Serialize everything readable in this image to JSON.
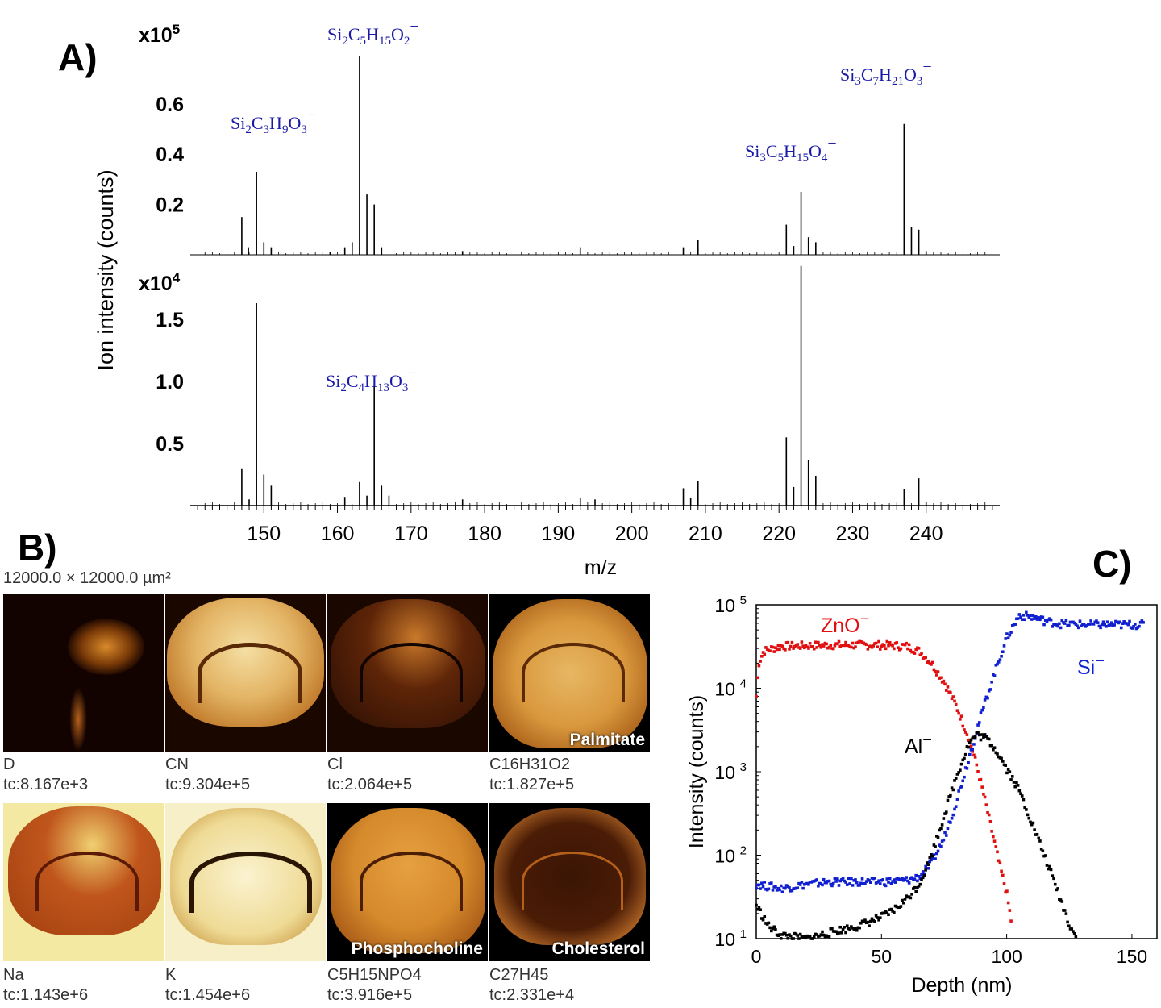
{
  "panel_a": {
    "label": "A)",
    "y_title": "Ion intensity (counts)",
    "x_title": "m/z",
    "x_ticks": [
      "150",
      "160",
      "170",
      "180",
      "190",
      "200",
      "210",
      "220",
      "230",
      "240"
    ],
    "top": {
      "multiplier": "x10",
      "multiplier_exp": "5",
      "y_ticks": [
        "0.2",
        "0.4",
        "0.6"
      ]
    },
    "bottom": {
      "multiplier": "x10",
      "multiplier_exp": "4",
      "y_ticks": [
        "0.5",
        "1.0",
        "1.5"
      ]
    },
    "ion_labels": [
      {
        "text": "Si2C3H9O3−"
      },
      {
        "text": "Si2C5H15O2−"
      },
      {
        "text": "Si3C5H15O4−"
      },
      {
        "text": "Si3C7H21O3−"
      },
      {
        "text": "Si2C4H13O3−"
      }
    ]
  },
  "chart_data": [
    {
      "type": "line",
      "title": "",
      "xlabel": "m/z",
      "ylabel": "Ion intensity (counts)",
      "y_multiplier": "x10^5",
      "xlim": [
        140,
        250
      ],
      "ylim": [
        0,
        0.8
      ],
      "peaks": [
        {
          "x": 147,
          "y": 0.15
        },
        {
          "x": 147.9,
          "y": 0.03
        },
        {
          "x": 149,
          "y": 0.33
        },
        {
          "x": 150,
          "y": 0.05
        },
        {
          "x": 151,
          "y": 0.03
        },
        {
          "x": 159,
          "y": 0.012
        },
        {
          "x": 161,
          "y": 0.03
        },
        {
          "x": 162,
          "y": 0.05
        },
        {
          "x": 163,
          "y": 0.79
        },
        {
          "x": 164,
          "y": 0.24
        },
        {
          "x": 165,
          "y": 0.2
        },
        {
          "x": 166,
          "y": 0.03
        },
        {
          "x": 177,
          "y": 0.015
        },
        {
          "x": 193,
          "y": 0.03
        },
        {
          "x": 207,
          "y": 0.03
        },
        {
          "x": 209,
          "y": 0.06
        },
        {
          "x": 221,
          "y": 0.12
        },
        {
          "x": 222,
          "y": 0.035
        },
        {
          "x": 223,
          "y": 0.25
        },
        {
          "x": 224,
          "y": 0.07
        },
        {
          "x": 225,
          "y": 0.05
        },
        {
          "x": 237,
          "y": 0.52
        },
        {
          "x": 238,
          "y": 0.11
        },
        {
          "x": 239,
          "y": 0.1
        },
        {
          "x": 240,
          "y": 0.015
        }
      ]
    },
    {
      "type": "line",
      "title": "",
      "xlabel": "m/z",
      "ylabel": "Ion intensity (counts)",
      "y_multiplier": "x10^4",
      "xlim": [
        140,
        250
      ],
      "ylim": [
        0,
        2.0
      ],
      "peaks": [
        {
          "x": 147,
          "y": 0.3
        },
        {
          "x": 148,
          "y": 0.05
        },
        {
          "x": 149,
          "y": 1.63
        },
        {
          "x": 150,
          "y": 0.25
        },
        {
          "x": 151,
          "y": 0.16
        },
        {
          "x": 161,
          "y": 0.07
        },
        {
          "x": 163,
          "y": 0.19
        },
        {
          "x": 164,
          "y": 0.08
        },
        {
          "x": 165,
          "y": 0.97
        },
        {
          "x": 166,
          "y": 0.16
        },
        {
          "x": 167,
          "y": 0.08
        },
        {
          "x": 177,
          "y": 0.05
        },
        {
          "x": 193,
          "y": 0.06
        },
        {
          "x": 195,
          "y": 0.05
        },
        {
          "x": 207,
          "y": 0.14
        },
        {
          "x": 208,
          "y": 0.06
        },
        {
          "x": 209,
          "y": 0.2
        },
        {
          "x": 221,
          "y": 0.55
        },
        {
          "x": 222,
          "y": 0.15
        },
        {
          "x": 223,
          "y": 1.93
        },
        {
          "x": 224,
          "y": 0.37
        },
        {
          "x": 225,
          "y": 0.24
        },
        {
          "x": 237,
          "y": 0.13
        },
        {
          "x": 239,
          "y": 0.22
        },
        {
          "x": 240,
          "y": 0.03
        }
      ]
    },
    {
      "type": "scatter",
      "title": "",
      "xlabel": "Depth (nm)",
      "ylabel": "Intensity (counts)",
      "xlim": [
        0,
        160
      ],
      "ylim": [
        10,
        100000
      ],
      "y_scale": "log",
      "x_ticks": [
        "0",
        "50",
        "100",
        "150"
      ],
      "y_ticks": [
        "10",
        "10",
        "10",
        "10",
        "10"
      ],
      "y_tick_exps": [
        "1",
        "2",
        "3",
        "4",
        "5"
      ],
      "series": [
        {
          "name": "ZnO−",
          "color": "#e01010",
          "points": [
            [
              0,
              8000
            ],
            [
              1,
              20000
            ],
            [
              3,
              28000
            ],
            [
              10,
              32000
            ],
            [
              30,
              33000
            ],
            [
              50,
              33000
            ],
            [
              60,
              32000
            ],
            [
              65,
              28000
            ],
            [
              70,
              20000
            ],
            [
              75,
              12000
            ],
            [
              80,
              6000
            ],
            [
              85,
              2500
            ],
            [
              88,
              1200
            ],
            [
              91,
              500
            ],
            [
              94,
              200
            ],
            [
              97,
              80
            ],
            [
              100,
              35
            ],
            [
              102,
              15
            ]
          ]
        },
        {
          "name": "Si−",
          "color": "#1020d0",
          "points": [
            [
              0,
              45
            ],
            [
              10,
              40
            ],
            [
              20,
              45
            ],
            [
              30,
              48
            ],
            [
              40,
              48
            ],
            [
              50,
              48
            ],
            [
              60,
              50
            ],
            [
              65,
              55
            ],
            [
              70,
              80
            ],
            [
              75,
              160
            ],
            [
              80,
              450
            ],
            [
              85,
              1500
            ],
            [
              90,
              5000
            ],
            [
              95,
              15000
            ],
            [
              100,
              40000
            ],
            [
              105,
              75000
            ],
            [
              110,
              72000
            ],
            [
              115,
              65000
            ],
            [
              120,
              60000
            ],
            [
              130,
              58000
            ],
            [
              140,
              58000
            ],
            [
              155,
              58000
            ]
          ]
        },
        {
          "name": "Al−",
          "color": "#000000",
          "points": [
            [
              0,
              25
            ],
            [
              5,
              14
            ],
            [
              10,
              11
            ],
            [
              20,
              10
            ],
            [
              30,
              12
            ],
            [
              40,
              14
            ],
            [
              50,
              18
            ],
            [
              55,
              22
            ],
            [
              60,
              30
            ],
            [
              65,
              45
            ],
            [
              70,
              100
            ],
            [
              75,
              300
            ],
            [
              80,
              900
            ],
            [
              85,
              2200
            ],
            [
              88,
              2800
            ],
            [
              92,
              2500
            ],
            [
              96,
              1800
            ],
            [
              100,
              1100
            ],
            [
              105,
              600
            ],
            [
              110,
              250
            ],
            [
              115,
              100
            ],
            [
              120,
              40
            ],
            [
              125,
              15
            ],
            [
              128,
              10
            ]
          ]
        }
      ]
    }
  ],
  "panel_b": {
    "label": "B)",
    "scale_text": "12000.0 × 12000.0 µm²",
    "tiles": [
      {
        "name": "D",
        "tc": "tc:8.167e+3",
        "overlay": ""
      },
      {
        "name": "CN",
        "tc": "tc:9.304e+5",
        "overlay": ""
      },
      {
        "name": "Cl",
        "tc": "tc:2.064e+5",
        "overlay": ""
      },
      {
        "name": "C16H31O2",
        "tc": "tc:1.827e+5",
        "overlay": "Palmitate"
      },
      {
        "name": "Na",
        "tc": "tc:1.143e+6",
        "overlay": ""
      },
      {
        "name": "K",
        "tc": "tc:1.454e+6",
        "overlay": ""
      },
      {
        "name": "C5H15NPO4",
        "tc": "tc:3.916e+5",
        "overlay": "Phosphocholine"
      },
      {
        "name": "C27H45",
        "tc": "tc:2.331e+4",
        "overlay": "Cholesterol"
      }
    ]
  },
  "panel_c": {
    "label": "C)",
    "xlabel": "Depth (nm)",
    "ylabel": "Intensity (counts)",
    "series_labels": [
      "ZnO",
      "Si",
      "Al"
    ],
    "series_label_suffix": "−"
  }
}
